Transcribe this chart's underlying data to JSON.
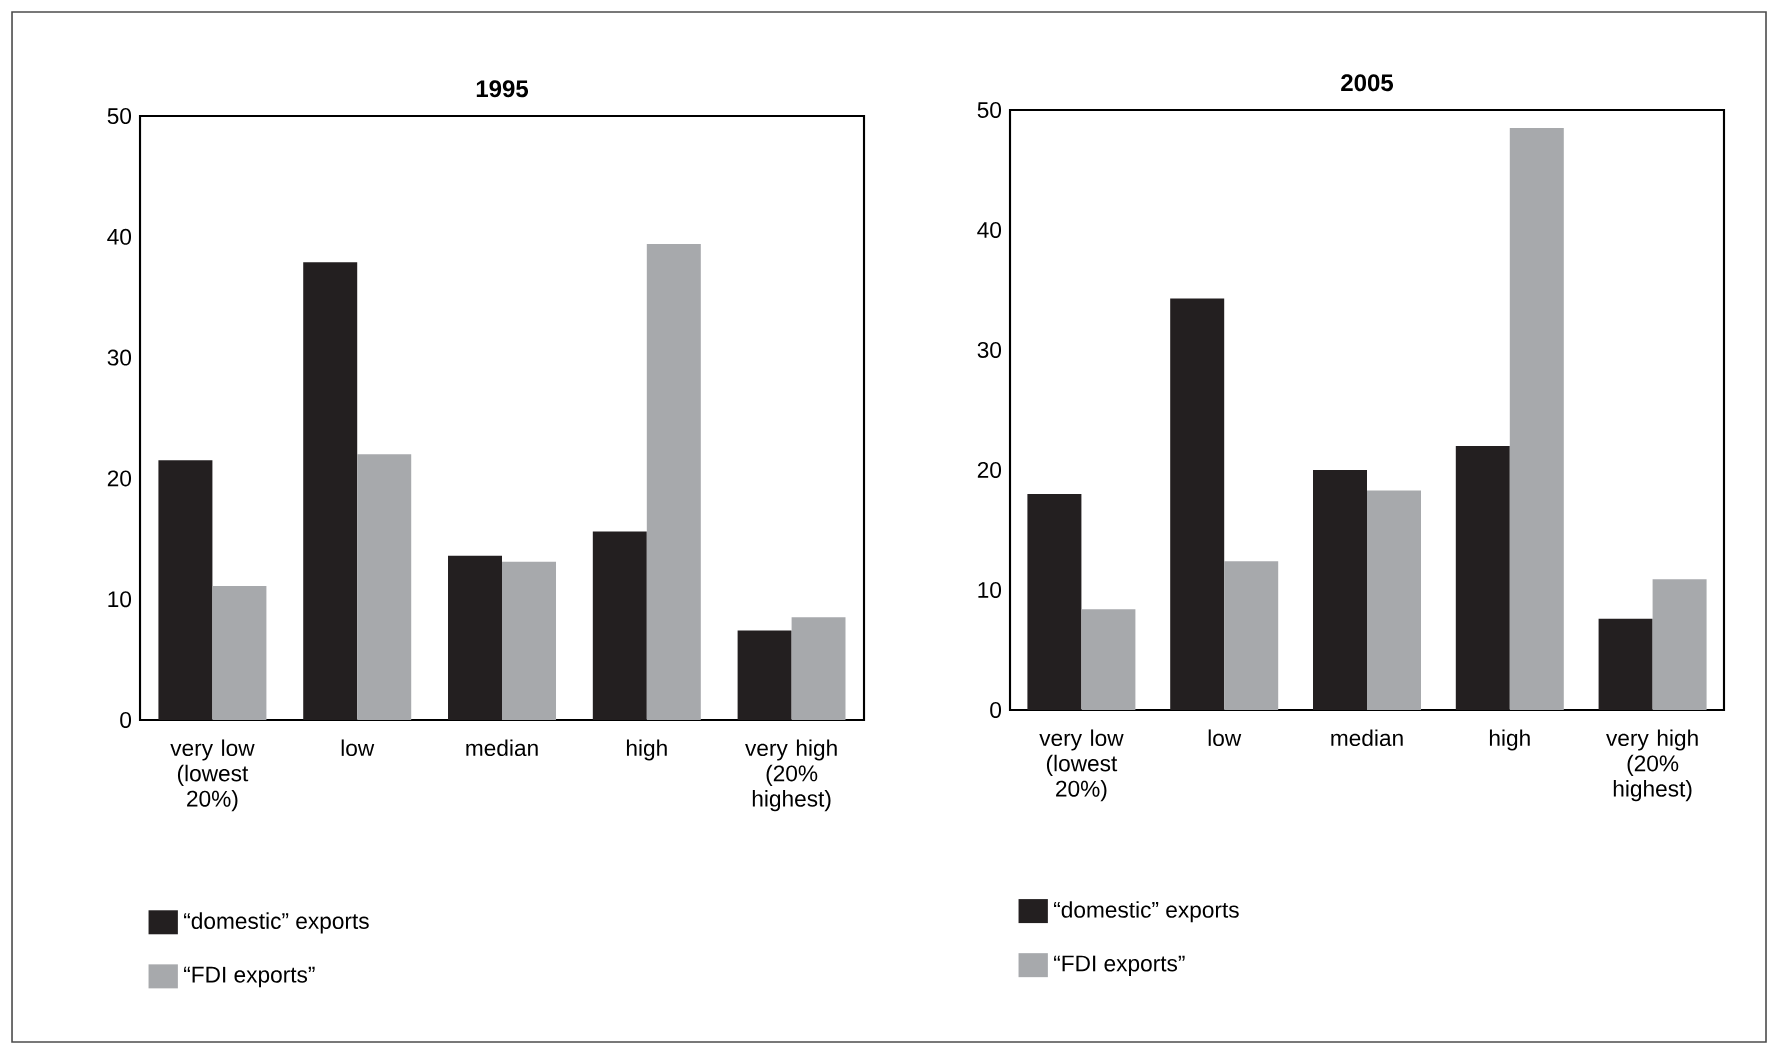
{
  "chart_data": [
    {
      "type": "bar",
      "title": "1995",
      "categories": [
        "very low (lowest 20%)",
        "low",
        "median",
        "high",
        "very high (20% highest)"
      ],
      "series": [
        {
          "name": "“domestic” exports",
          "color": "#231f20",
          "values": [
            21.5,
            37.9,
            13.6,
            15.6,
            7.4
          ]
        },
        {
          "name": "“FDI exports”",
          "color": "#a7a9ac",
          "values": [
            11.1,
            22.0,
            13.1,
            39.4,
            8.5
          ]
        }
      ],
      "ylim": [
        0,
        50
      ],
      "yticks": [
        0,
        10,
        20,
        30,
        40,
        50
      ],
      "legend": "bottom",
      "grid": false
    },
    {
      "type": "bar",
      "title": "2005",
      "categories": [
        "very low (lowest 20%)",
        "low",
        "median",
        "high",
        "very high (20% highest)"
      ],
      "series": [
        {
          "name": "“domestic” exports",
          "color": "#231f20",
          "values": [
            18.0,
            34.3,
            20.0,
            22.0,
            7.6
          ]
        },
        {
          "name": "“FDI exports”",
          "color": "#a7a9ac",
          "values": [
            8.4,
            12.4,
            18.3,
            48.5,
            10.9
          ]
        }
      ],
      "ylim": [
        0,
        50
      ],
      "yticks": [
        0,
        10,
        20,
        30,
        40,
        50
      ],
      "legend": "bottom",
      "grid": false
    }
  ]
}
